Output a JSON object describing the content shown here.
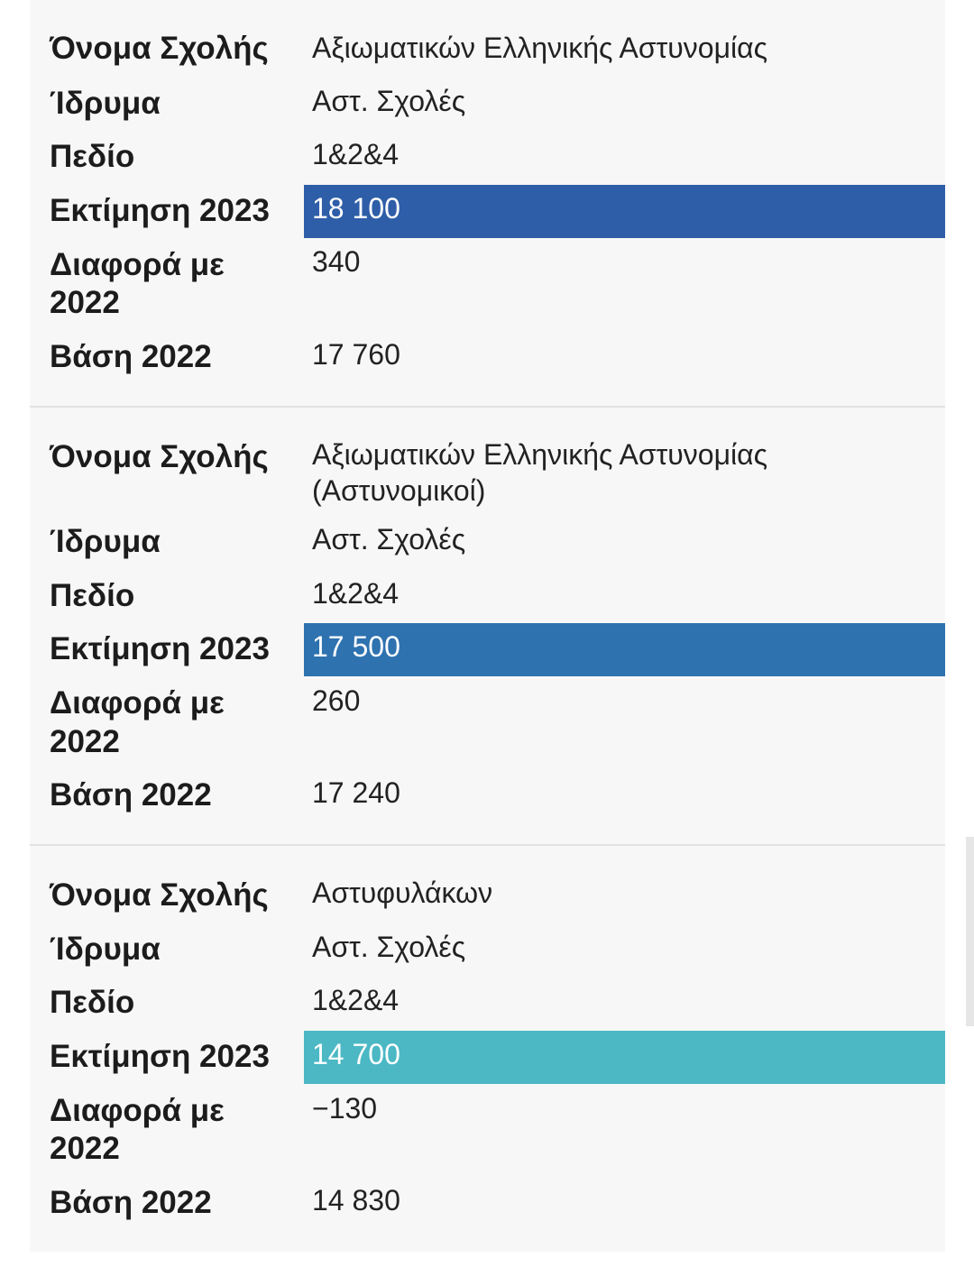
{
  "labels": {
    "school_name": "Όνομα Σχολής",
    "institution": "Ίδρυμα",
    "field": "Πεδίο",
    "estimate_2023": "Εκτίμηση 2023",
    "diff_line1": "Διαφορά με",
    "diff_line2": "2022",
    "base_2022": "Βάση 2022"
  },
  "colors": {
    "highlight_card1": "#2e5ea8",
    "highlight_card2": "#2e72b0",
    "highlight_card3": "#4bb8c4"
  },
  "cards": [
    {
      "school_name": "Αξιωματικών Ελληνικής Αστυνομίας",
      "institution": "Αστ. Σχολές",
      "field": "1&2&4",
      "estimate_2023": "18 100",
      "diff_2022": "340",
      "base_2022": "17 760"
    },
    {
      "school_name_line1": "Αξιωματικών Ελληνικής Αστυνομίας",
      "school_name_line2": "(Αστυνομικοί)",
      "institution": "Αστ. Σχολές",
      "field": "1&2&4",
      "estimate_2023": "17 500",
      "diff_2022": "260",
      "base_2022": "17 240"
    },
    {
      "school_name": "Αστυφυλάκων",
      "institution": "Αστ. Σχολές",
      "field": "1&2&4",
      "estimate_2023": "14 700",
      "diff_2022": "−130",
      "base_2022": "14 830"
    }
  ]
}
